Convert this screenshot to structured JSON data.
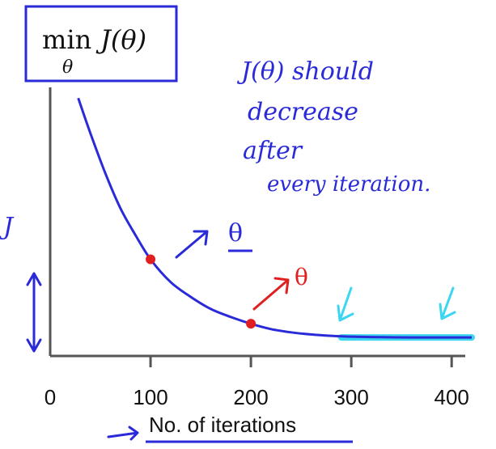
{
  "chart_data": {
    "type": "line",
    "title": "",
    "formula": {
      "main": "min",
      "func": "J(θ)",
      "subscript": "θ"
    },
    "xlabel": "No. of iterations",
    "ylabel": "J(θ)",
    "xlim": [
      0,
      420
    ],
    "ylim": [
      0,
      10
    ],
    "x_ticks": [
      "0",
      "100",
      "200",
      "300",
      "400"
    ],
    "x_tick_values": [
      0,
      100,
      200,
      300,
      400
    ],
    "grid": false,
    "series": [
      {
        "x": [
          28,
          40,
          55,
          70,
          85,
          100,
          120,
          140,
          160,
          180,
          200,
          220,
          240,
          260,
          280,
          300,
          330,
          360,
          390,
          420
        ],
        "y": [
          9.6,
          8.3,
          6.8,
          5.5,
          4.5,
          3.6,
          2.75,
          2.2,
          1.75,
          1.45,
          1.2,
          1.0,
          0.88,
          0.8,
          0.75,
          0.72,
          0.7,
          0.69,
          0.69,
          0.69
        ]
      }
    ],
    "highlight": {
      "x_start": 290,
      "x_end": 420,
      "y": 0.69,
      "color": "#3cd6f0"
    },
    "points": [
      {
        "x": 100,
        "y": 3.6,
        "color": "#e02020"
      },
      {
        "x": 200,
        "y": 1.2,
        "color": "#e02020"
      }
    ],
    "annotations": {
      "note_lines": [
        "J(θ) should",
        "decrease",
        "after",
        "every iteration."
      ],
      "theta_blue": "θ",
      "theta_red": "θ",
      "y_side_mark": "J"
    },
    "colors": {
      "curve": "#2a2ad8",
      "axis": "#555555",
      "ink_blue": "#2a2ad8",
      "ink_red": "#e02020",
      "ink_cyan": "#3cd6f0"
    }
  }
}
